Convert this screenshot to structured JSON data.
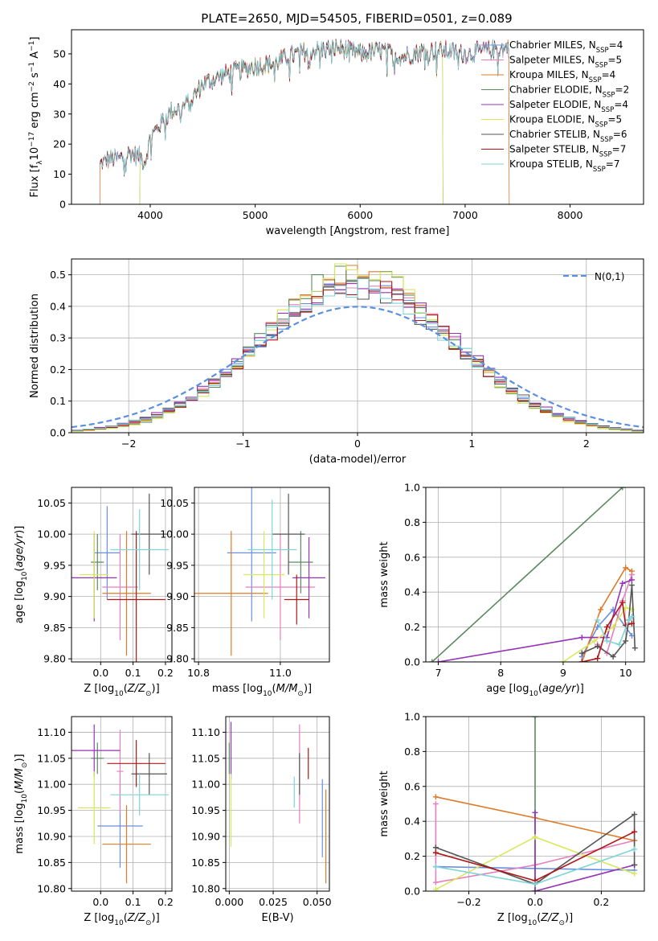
{
  "figure": {
    "title": "PLATE=2650, MJD=54505, FIBERID=0501, z=0.089"
  },
  "colors": {
    "Chabrier MILES": "#6b8fe0",
    "Salpeter MILES": "#e67fbf",
    "Kroupa MILES": "#e07a26",
    "Chabrier ELODIE": "#5b8a60",
    "Salpeter ELODIE": "#9633b8",
    "Kroupa ELODIE": "#d8e85a",
    "Chabrier STELIB": "#555555",
    "Salpeter STELIB": "#b01616",
    "Kroupa STELIB": "#7fd4d8",
    "normal": "#5b8fe0"
  },
  "chart_data": [
    {
      "id": "spectrum",
      "type": "line",
      "title": "PLATE=2650, MJD=54505, FIBERID=0501, z=0.089",
      "xlabel": "wavelength [Angstrom, rest frame]",
      "ylabel": "Flux [f_λ 10^-17 erg cm^-2 s^-1 A^-1]",
      "xlim": [
        3250,
        8700
      ],
      "ylim": [
        0,
        58
      ],
      "xticks": [
        4000,
        5000,
        6000,
        7000,
        8000
      ],
      "yticks": [
        0,
        10,
        20,
        30,
        40,
        50
      ],
      "grid": false,
      "legend_position": "top-right",
      "series": [
        {
          "name": "Chabrier MILES, N_SSP=4",
          "label": "Chabrier MILES, N",
          "sub": "SSP",
          "suffix": "=4"
        },
        {
          "name": "Salpeter MILES, N_SSP=5",
          "label": "Salpeter MILES, N",
          "sub": "SSP",
          "suffix": "=5"
        },
        {
          "name": "Kroupa MILES, N_SSP=4",
          "label": "Kroupa MILES, N",
          "sub": "SSP",
          "suffix": "=4"
        },
        {
          "name": "Chabrier ELODIE, N_SSP=2",
          "label": "Chabrier ELODIE, N",
          "sub": "SSP",
          "suffix": "=2"
        },
        {
          "name": "Salpeter ELODIE, N_SSP=4",
          "label": "Salpeter ELODIE, N",
          "sub": "SSP",
          "suffix": "=4"
        },
        {
          "name": "Kroupa ELODIE, N_SSP=5",
          "label": "Kroupa ELODIE, N",
          "sub": "SSP",
          "suffix": "=5"
        },
        {
          "name": "Chabrier STELIB, N_SSP=6",
          "label": "Chabrier STELIB, N",
          "sub": "SSP",
          "suffix": "=6"
        },
        {
          "name": "Salpeter STELIB, N_SSP=7",
          "label": "Salpeter STELIB, N",
          "sub": "SSP",
          "suffix": "=7"
        },
        {
          "name": "Kroupa STELIB, N_SSP=7",
          "label": "Kroupa STELIB, N",
          "sub": "SSP",
          "suffix": "=7"
        }
      ],
      "continuum": {
        "x": [
          3520,
          3600,
          3700,
          3800,
          3900,
          3950,
          4000,
          4100,
          4200,
          4300,
          4400,
          4500,
          4700,
          5000,
          5200,
          5300,
          5500,
          5800,
          6000,
          6200,
          6400,
          6600,
          6800,
          7000,
          7200,
          7400
        ],
        "y": [
          13,
          15,
          15,
          17,
          16,
          14,
          22,
          27,
          31,
          32,
          35,
          40,
          43,
          46,
          47,
          49,
          51,
          52,
          50,
          51,
          49,
          51,
          51,
          50,
          51,
          52
        ]
      },
      "cutoffs": [
        {
          "series": "Salpeter MILES, N_SSP=5",
          "x_start": 3520,
          "x_end": 7420
        },
        {
          "series": "Kroupa MILES, N_SSP=4",
          "x_start": 3520,
          "x_end": 7420
        },
        {
          "series": "Chabrier ELODIE, N_SSP=2",
          "x_start": 3900,
          "x_end": 6790
        },
        {
          "series": "Kroupa ELODIE, N_SSP=5",
          "x_start": 3900,
          "x_end": 6790
        }
      ]
    },
    {
      "id": "residuals",
      "type": "histogram",
      "xlabel": "(data-model)/error",
      "ylabel": "Normed distribution",
      "xlim": [
        -2.5,
        2.5
      ],
      "ylim": [
        0,
        0.55
      ],
      "xticks": [
        -2,
        -1,
        0,
        1,
        2
      ],
      "yticks": [
        0.0,
        0.1,
        0.2,
        0.3,
        0.4,
        0.5
      ],
      "grid": true,
      "legend_position": "top-right",
      "legend": [
        "N(0,1)"
      ],
      "bin_width": 0.1,
      "bin_start": -2.5,
      "reference": {
        "name": "N(0,1)",
        "mean": 0,
        "sigma": 1
      },
      "series": [
        {
          "name": "Chabrier MILES",
          "peak": 0.47,
          "sigma": 0.85
        },
        {
          "name": "Salpeter MILES",
          "peak": 0.48,
          "sigma": 0.84
        },
        {
          "name": "Kroupa MILES",
          "peak": 0.5,
          "sigma": 0.82
        },
        {
          "name": "Chabrier ELODIE",
          "peak": 0.52,
          "sigma": 0.8
        },
        {
          "name": "Salpeter ELODIE",
          "peak": 0.48,
          "sigma": 0.86
        },
        {
          "name": "Kroupa ELODIE",
          "peak": 0.51,
          "sigma": 0.8
        },
        {
          "name": "Chabrier STELIB",
          "peak": 0.45,
          "sigma": 0.87
        },
        {
          "name": "Salpeter STELIB",
          "peak": 0.47,
          "sigma": 0.84
        },
        {
          "name": "Kroupa STELIB",
          "peak": 0.46,
          "sigma": 0.86
        }
      ]
    },
    {
      "id": "age-vs-Z",
      "type": "scatter",
      "xlabel": "Z [log10(Z/Z_sun)]",
      "ylabel": "age [log10(age/yr)]",
      "xlim": [
        -0.09,
        0.22
      ],
      "ylim": [
        9.795,
        10.075
      ],
      "xticks": [
        0.0,
        0.1,
        0.2
      ],
      "yticks": [
        9.8,
        9.85,
        9.9,
        9.95,
        10.0,
        10.05
      ],
      "grid": true,
      "points": [
        {
          "series": "Chabrier MILES",
          "x": 0.02,
          "y": 9.97,
          "xerr": 0.04,
          "yerr": 0.075
        },
        {
          "series": "Salpeter MILES",
          "x": 0.06,
          "y": 9.915,
          "xerr": 0.055,
          "yerr": 0.085
        },
        {
          "series": "Kroupa MILES",
          "x": 0.08,
          "y": 9.905,
          "xerr": 0.075,
          "yerr": 0.1
        },
        {
          "series": "Chabrier ELODIE",
          "x": -0.01,
          "y": 9.955,
          "xerr": 0.02,
          "yerr": 0.045
        },
        {
          "series": "Salpeter ELODIE",
          "x": -0.02,
          "y": 9.93,
          "xerr": 0.07,
          "yerr": 0.07
        },
        {
          "series": "Kroupa ELODIE",
          "x": -0.02,
          "y": 9.935,
          "xerr": 0.045,
          "yerr": 0.07
        },
        {
          "series": "Chabrier STELIB",
          "x": 0.15,
          "y": 10.0,
          "xerr": 0.055,
          "yerr": 0.065
        },
        {
          "series": "Salpeter STELIB",
          "x": 0.11,
          "y": 9.895,
          "xerr": 0.09,
          "yerr": 0.11
        },
        {
          "series": "Kroupa STELIB",
          "x": 0.12,
          "y": 9.975,
          "xerr": 0.09,
          "yerr": 0.065
        }
      ]
    },
    {
      "id": "age-vs-mass",
      "type": "scatter",
      "xlabel": "mass [log10(M/M_sun)]",
      "ylabel": "",
      "xlim": [
        10.79,
        11.12
      ],
      "ylim": [
        9.795,
        10.075
      ],
      "xticks": [
        10.8,
        11.0
      ],
      "yticks": [
        9.8,
        9.85,
        9.9,
        9.95,
        10.0,
        10.05
      ],
      "grid": true,
      "points": [
        {
          "series": "Chabrier MILES",
          "x": 10.93,
          "y": 9.97,
          "xerr": 0.06,
          "yerr": 0.11
        },
        {
          "series": "Salpeter MILES",
          "x": 11.0,
          "y": 9.915,
          "xerr": 0.085,
          "yerr": 0.085
        },
        {
          "series": "Kroupa MILES",
          "x": 10.88,
          "y": 9.905,
          "xerr": 0.09,
          "yerr": 0.1
        },
        {
          "series": "Chabrier ELODIE",
          "x": 11.05,
          "y": 9.955,
          "xerr": 0.03,
          "yerr": 0.05
        },
        {
          "series": "Salpeter ELODIE",
          "x": 11.07,
          "y": 9.93,
          "xerr": 0.04,
          "yerr": 0.065
        },
        {
          "series": "Kroupa ELODIE",
          "x": 10.96,
          "y": 9.935,
          "xerr": 0.05,
          "yerr": 0.07
        },
        {
          "series": "Chabrier STELIB",
          "x": 11.02,
          "y": 10.0,
          "xerr": 0.04,
          "yerr": 0.065
        },
        {
          "series": "Salpeter STELIB",
          "x": 11.04,
          "y": 9.895,
          "xerr": 0.03,
          "yerr": 0.04
        },
        {
          "series": "Kroupa STELIB",
          "x": 10.98,
          "y": 9.975,
          "xerr": 0.06,
          "yerr": 0.08
        }
      ]
    },
    {
      "id": "weight-vs-age",
      "type": "line",
      "xlabel": "age [log10(age/yr)]",
      "ylabel": "mass weight",
      "xlim": [
        6.8,
        10.3
      ],
      "ylim": [
        0,
        1.0
      ],
      "xticks": [
        7,
        8,
        9,
        10
      ],
      "yticks": [
        0.0,
        0.2,
        0.4,
        0.6,
        0.8,
        1.0
      ],
      "grid": true,
      "series": [
        {
          "name": "Chabrier MILES",
          "x": [
            9.3,
            9.55,
            9.8,
            10.1
          ],
          "y": [
            0.03,
            0.2,
            0.3,
            0.15
          ]
        },
        {
          "name": "Salpeter MILES",
          "x": [
            9.55,
            9.7,
            9.95,
            10.1
          ],
          "y": [
            0.1,
            0.05,
            0.35,
            0.5
          ]
        },
        {
          "name": "Kroupa MILES",
          "x": [
            9.3,
            9.6,
            10.0,
            10.1
          ],
          "y": [
            0.0,
            0.3,
            0.54,
            0.52
          ]
        },
        {
          "name": "Chabrier ELODIE",
          "x": [
            6.9,
            9.95
          ],
          "y": [
            0.0,
            1.0
          ]
        },
        {
          "name": "Salpeter ELODIE",
          "x": [
            7.0,
            9.3,
            9.7,
            9.95,
            10.1
          ],
          "y": [
            0.0,
            0.14,
            0.14,
            0.45,
            0.47
          ]
        },
        {
          "name": "Kroupa ELODIE",
          "x": [
            9.0,
            9.5,
            9.8,
            10.0,
            10.1
          ],
          "y": [
            0.0,
            0.12,
            0.2,
            0.31,
            0.3
          ]
        },
        {
          "name": "Chabrier STELIB",
          "x": [
            9.3,
            9.55,
            9.8,
            10.0,
            10.05,
            10.1,
            10.15
          ],
          "y": [
            0.05,
            0.09,
            0.03,
            0.12,
            0.24,
            0.44,
            0.08
          ]
        },
        {
          "name": "Salpeter STELIB",
          "x": [
            9.3,
            9.55,
            9.7,
            9.95,
            10.0,
            10.1
          ],
          "y": [
            0.0,
            0.02,
            0.2,
            0.34,
            0.21,
            0.22
          ]
        },
        {
          "name": "Kroupa STELIB",
          "x": [
            9.55,
            9.7,
            9.9,
            10.05,
            10.1
          ],
          "y": [
            0.24,
            0.12,
            0.1,
            0.24,
            0.26
          ]
        }
      ]
    },
    {
      "id": "mass-vs-Z",
      "type": "scatter",
      "xlabel": "Z [log10(Z/Z_sun)]",
      "ylabel": "mass [log10(M/M_sun)]",
      "xlim": [
        -0.09,
        0.22
      ],
      "ylim": [
        10.795,
        11.13
      ],
      "xticks": [
        0.0,
        0.1,
        0.2
      ],
      "yticks": [
        10.8,
        10.85,
        10.9,
        10.95,
        11.0,
        11.05,
        11.1
      ],
      "grid": true,
      "points": [
        {
          "series": "Chabrier MILES",
          "x": 0.06,
          "y": 10.92,
          "xerr": 0.07,
          "yerr": 0.08
        },
        {
          "series": "Salpeter MILES",
          "x": 0.06,
          "y": 11.025,
          "xerr": 0.01,
          "yerr": 0.08
        },
        {
          "series": "Kroupa MILES",
          "x": 0.08,
          "y": 10.885,
          "xerr": 0.075,
          "yerr": 0.075
        },
        {
          "series": "Chabrier ELODIE",
          "x": -0.01,
          "y": 11.05,
          "xerr": 0.02,
          "yerr": 0.03
        },
        {
          "series": "Salpeter ELODIE",
          "x": -0.02,
          "y": 11.065,
          "xerr": 0.08,
          "yerr": 0.05
        },
        {
          "series": "Kroupa ELODIE",
          "x": -0.02,
          "y": 10.955,
          "xerr": 0.05,
          "yerr": 0.07
        },
        {
          "series": "Chabrier STELIB",
          "x": 0.15,
          "y": 11.02,
          "xerr": 0.055,
          "yerr": 0.04
        },
        {
          "series": "Salpeter STELIB",
          "x": 0.11,
          "y": 11.04,
          "xerr": 0.09,
          "yerr": 0.045
        },
        {
          "series": "Kroupa STELIB",
          "x": 0.12,
          "y": 10.98,
          "xerr": 0.09,
          "yerr": 0.04
        }
      ]
    },
    {
      "id": "mass-vs-EBV",
      "type": "scatter",
      "xlabel": "E(B-V)",
      "ylabel": "",
      "xlim": [
        -0.002,
        0.057
      ],
      "ylim": [
        10.795,
        11.13
      ],
      "xticks": [
        0.0,
        0.025,
        0.05
      ],
      "yticks": [
        10.8,
        10.85,
        10.9,
        10.95,
        11.0,
        11.05,
        11.1
      ],
      "grid": true,
      "points": [
        {
          "series": "Chabrier MILES",
          "x": 0.053,
          "y": 10.935,
          "yerr": 0.075
        },
        {
          "series": "Salpeter MILES",
          "x": 0.04,
          "y": 11.02,
          "yerr": 0.095
        },
        {
          "series": "Kroupa MILES",
          "x": 0.055,
          "y": 10.9,
          "yerr": 0.09
        },
        {
          "series": "Chabrier ELODIE",
          "x": 0.0,
          "y": 11.05,
          "yerr": 0.03
        },
        {
          "series": "Salpeter ELODIE",
          "x": 0.001,
          "y": 11.065,
          "yerr": 0.055
        },
        {
          "series": "Kroupa ELODIE",
          "x": 0.001,
          "y": 10.95,
          "yerr": 0.07
        },
        {
          "series": "Chabrier STELIB",
          "x": 0.04,
          "y": 11.02,
          "yerr": 0.04
        },
        {
          "series": "Salpeter STELIB",
          "x": 0.045,
          "y": 11.04,
          "yerr": 0.03
        },
        {
          "series": "Kroupa STELIB",
          "x": 0.037,
          "y": 10.985,
          "yerr": 0.03
        }
      ]
    },
    {
      "id": "weight-vs-Z",
      "type": "line",
      "xlabel": "Z [log10(Z/Z_sun)]",
      "ylabel": "mass weight",
      "xlim": [
        -0.33,
        0.33
      ],
      "ylim": [
        0,
        1.0
      ],
      "xticks": [
        -0.2,
        0.0,
        0.2
      ],
      "yticks": [
        0.0,
        0.2,
        0.4,
        0.6,
        0.8,
        1.0
      ],
      "grid": true,
      "series": [
        {
          "name": "Chabrier MILES",
          "x": [
            -0.3,
            0.0,
            0.3
          ],
          "y": [
            0.14,
            0.13,
            0.12
          ]
        },
        {
          "name": "Salpeter MILES",
          "x": [
            -0.3,
            -0.3,
            0.0,
            0.3
          ],
          "y": [
            0.5,
            0.05,
            0.15,
            0.29
          ]
        },
        {
          "name": "Kroupa MILES",
          "x": [
            -0.3,
            0.0,
            0.3
          ],
          "y": [
            0.54,
            0.42,
            0.29
          ]
        },
        {
          "name": "Chabrier ELODIE",
          "x": [
            0.0,
            0.0
          ],
          "y": [
            0.0,
            1.0
          ]
        },
        {
          "name": "Salpeter ELODIE",
          "x": [
            0.0,
            0.0,
            0.3
          ],
          "y": [
            0.45,
            0.0,
            0.15
          ]
        },
        {
          "name": "Kroupa ELODIE",
          "x": [
            -0.3,
            0.0,
            0.3
          ],
          "y": [
            0.01,
            0.31,
            0.1
          ]
        },
        {
          "name": "Chabrier STELIB",
          "x": [
            -0.3,
            0.0,
            0.3,
            0.3
          ],
          "y": [
            0.25,
            0.04,
            0.44,
            0.15
          ]
        },
        {
          "name": "Salpeter STELIB",
          "x": [
            -0.3,
            0.0,
            0.3
          ],
          "y": [
            0.22,
            0.06,
            0.34
          ]
        },
        {
          "name": "Kroupa STELIB",
          "x": [
            -0.3,
            0.0,
            0.3
          ],
          "y": [
            0.14,
            0.04,
            0.24
          ]
        }
      ]
    }
  ]
}
